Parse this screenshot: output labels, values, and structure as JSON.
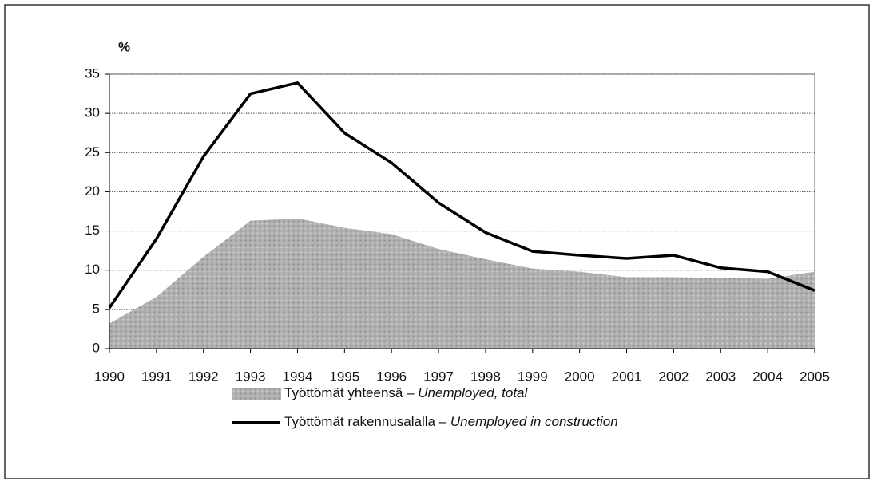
{
  "chart_data": {
    "type": "line",
    "y_label": "%",
    "x": [
      1990,
      1991,
      1992,
      1993,
      1994,
      1995,
      1996,
      1997,
      1998,
      1999,
      2000,
      2001,
      2002,
      2003,
      2004,
      2005
    ],
    "xlim": [
      1990,
      2005
    ],
    "xticks": [
      1990,
      1991,
      1992,
      1993,
      1994,
      1995,
      1996,
      1997,
      1998,
      1999,
      2000,
      2001,
      2002,
      2003,
      2004,
      2005
    ],
    "ylim": [
      0,
      35
    ],
    "yticks": [
      0,
      5,
      10,
      15,
      20,
      25,
      30,
      35
    ],
    "grid": true,
    "series": [
      {
        "name": "Työttömät yhteensä – Unemployed, total",
        "kind": "area",
        "color": "#a9a9a9",
        "values": [
          3.2,
          6.6,
          11.7,
          16.3,
          16.6,
          15.4,
          14.6,
          12.7,
          11.4,
          10.2,
          9.8,
          9.1,
          9.1,
          9.0,
          8.9,
          9.8
        ]
      },
      {
        "name": "Työttömät rakennusalalla – Unemployed in construction",
        "kind": "line",
        "color": "#000000",
        "values": [
          5.2,
          14.0,
          24.5,
          32.5,
          33.9,
          27.5,
          23.7,
          18.6,
          14.8,
          12.4,
          11.9,
          11.5,
          11.9,
          10.3,
          9.8,
          7.4
        ]
      }
    ]
  }
}
